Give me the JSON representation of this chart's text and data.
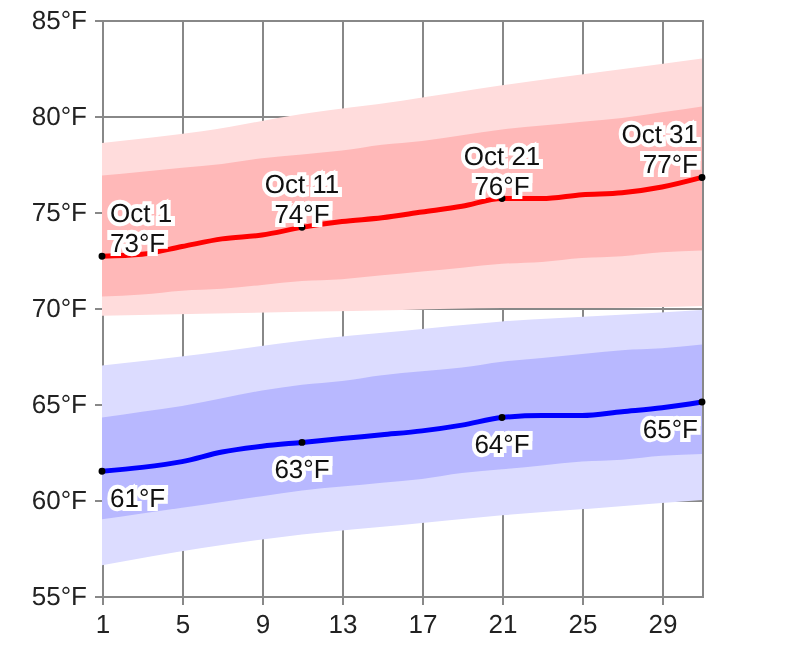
{
  "chart_data": {
    "type": "line",
    "xlim": [
      1,
      31
    ],
    "ylim": [
      55,
      85
    ],
    "xticks": [
      1,
      5,
      9,
      13,
      17,
      21,
      25,
      29
    ],
    "yticks": [
      {
        "value": 55,
        "label": "55°F"
      },
      {
        "value": 60,
        "label": "60°F"
      },
      {
        "value": 65,
        "label": "65°F"
      },
      {
        "value": 70,
        "label": "70°F"
      },
      {
        "value": 75,
        "label": "75°F"
      },
      {
        "value": 80,
        "label": "80°F"
      },
      {
        "value": 85,
        "label": "85°F"
      }
    ],
    "grid": true,
    "series": [
      {
        "type": "area",
        "color": "#ffdcdc",
        "x": [
          1,
          6,
          11,
          16,
          21,
          26,
          31
        ],
        "values": [
          null,
          null,
          null,
          null,
          null,
          null,
          null
        ],
        "lower": [
          69.6,
          69.7,
          69.8,
          69.9,
          70.0,
          70.0,
          70.1
        ],
        "upper": [
          78.6,
          79.2,
          80.1,
          80.8,
          81.6,
          82.3,
          83.0
        ]
      },
      {
        "type": "area",
        "color": "#dcdcff",
        "x": [
          1,
          6,
          11,
          16,
          21,
          26,
          31
        ],
        "values": [
          null,
          null,
          null,
          null,
          null,
          null,
          null
        ],
        "lower": [
          56.6,
          57.5,
          58.2,
          58.7,
          59.2,
          59.6,
          60.0
        ],
        "upper": [
          67.0,
          67.6,
          68.3,
          68.8,
          69.3,
          69.6,
          69.9
        ]
      },
      {
        "color": "#ff0000",
        "x": [
          1,
          3,
          5,
          7,
          9,
          11,
          13,
          15,
          17,
          19,
          21,
          23,
          25,
          27,
          29,
          31
        ],
        "values": [
          72.7,
          72.8,
          73.2,
          73.6,
          73.8,
          74.2,
          74.5,
          74.7,
          75.0,
          75.3,
          75.7,
          75.7,
          75.9,
          76.0,
          76.3,
          76.8
        ],
        "lower": [
          70.6,
          70.7,
          70.9,
          71.0,
          71.2,
          71.4,
          71.5,
          71.7,
          71.9,
          72.1,
          72.3,
          72.4,
          72.6,
          72.7,
          72.9,
          73.0
        ],
        "upper": [
          76.9,
          77.1,
          77.3,
          77.5,
          77.8,
          78.0,
          78.2,
          78.5,
          78.7,
          79.0,
          79.3,
          79.5,
          79.7,
          79.9,
          80.2,
          80.5
        ]
      },
      {
        "color": "#0000ff",
        "x": [
          1,
          3,
          5,
          7,
          9,
          11,
          13,
          15,
          17,
          19,
          21,
          23,
          25,
          27,
          29,
          31
        ],
        "values": [
          61.5,
          61.7,
          62.0,
          62.5,
          62.8,
          63.0,
          63.2,
          63.4,
          63.6,
          63.9,
          64.3,
          64.4,
          64.4,
          64.6,
          64.8,
          65.1
        ],
        "lower": [
          59.0,
          59.3,
          59.6,
          59.9,
          60.2,
          60.5,
          60.7,
          60.9,
          61.1,
          61.4,
          61.6,
          61.8,
          62.0,
          62.1,
          62.3,
          62.4
        ],
        "upper": [
          64.3,
          64.6,
          64.9,
          65.3,
          65.7,
          66.0,
          66.2,
          66.5,
          66.7,
          66.9,
          67.2,
          67.4,
          67.6,
          67.8,
          67.9,
          68.1
        ]
      }
    ],
    "annotations": [
      {
        "text": "Oct 1\n73°F",
        "x": 1,
        "y": 72.7
      },
      {
        "text": "Oct 11\n74°F",
        "x": 11,
        "y": 74.2
      },
      {
        "text": "Oct 21\n76°F",
        "x": 21,
        "y": 75.7
      },
      {
        "text": "Oct 31\n77°F",
        "x": 31,
        "y": 76.8
      },
      {
        "text": "61°F",
        "x": 1,
        "y": 61.5
      },
      {
        "text": "63°F",
        "x": 11,
        "y": 63.0
      },
      {
        "text": "64°F",
        "x": 21,
        "y": 64.3
      },
      {
        "text": "65°F",
        "x": 31,
        "y": 65.1
      }
    ]
  }
}
